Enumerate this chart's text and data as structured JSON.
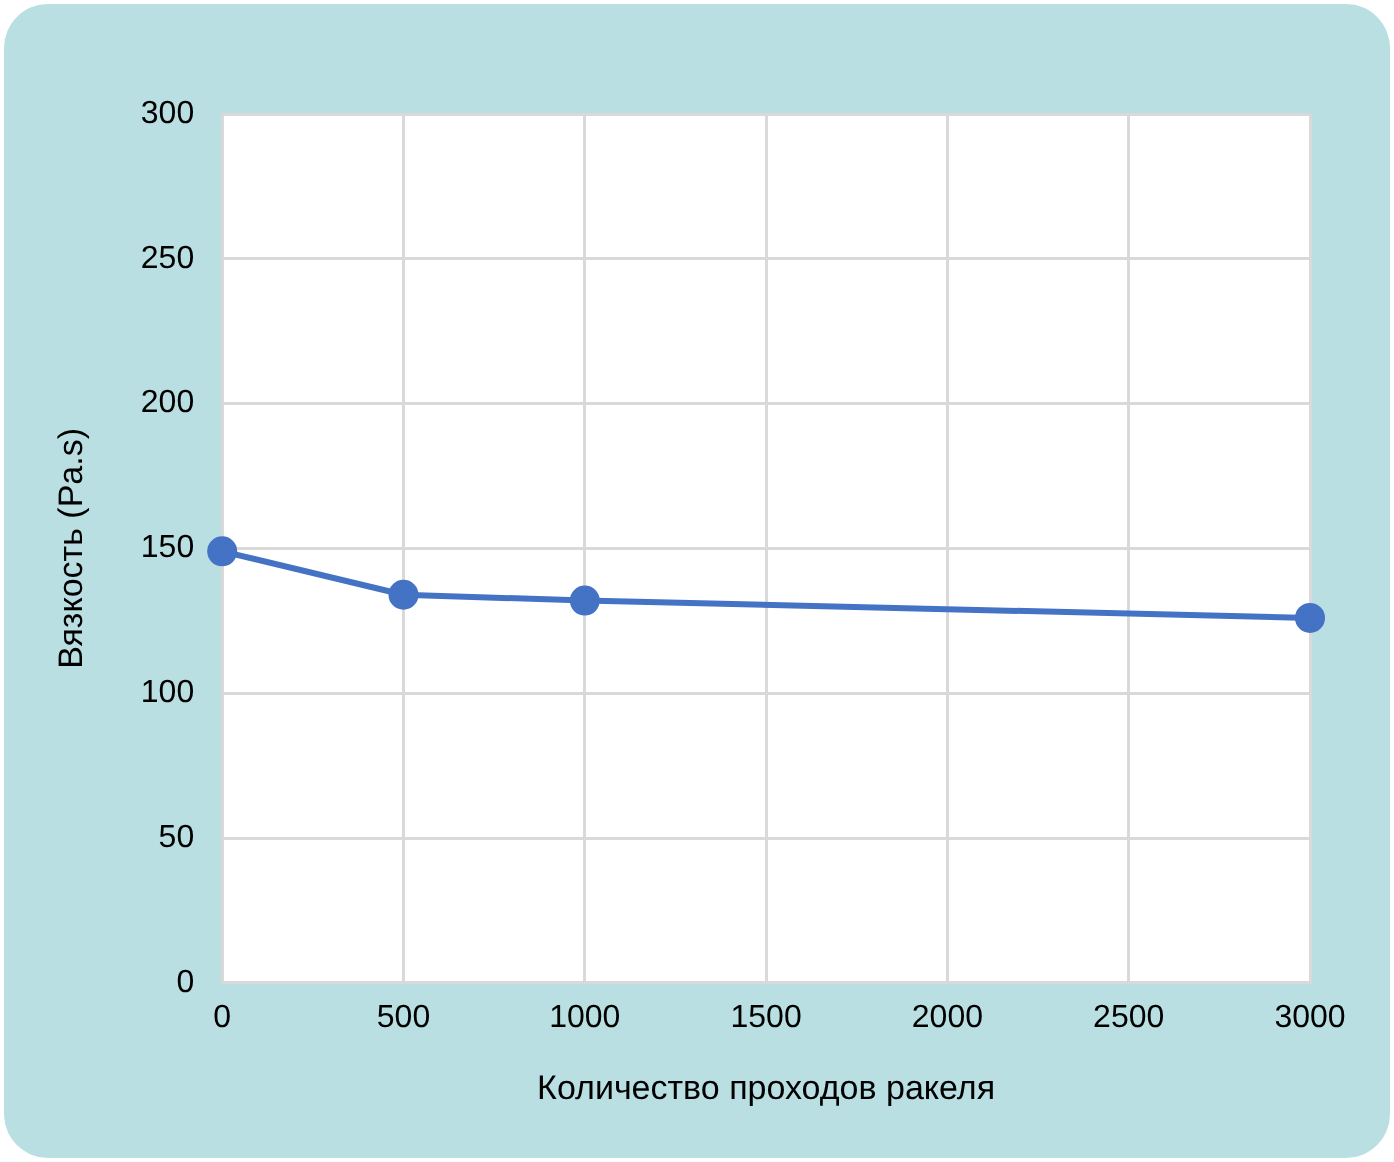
{
  "chart_data": {
    "type": "line",
    "xlabel": "Количество проходов ракеля",
    "ylabel": "Вязкость (Pa.s)",
    "x": [
      0,
      500,
      1000,
      3000
    ],
    "series": [
      {
        "color": "#4472c4",
        "values": [
          149,
          134,
          132,
          126
        ]
      }
    ],
    "xlim": [
      0,
      3000
    ],
    "xticks": [
      0,
      500,
      1000,
      1500,
      2000,
      2500,
      3000
    ],
    "ylim": [
      0,
      300
    ],
    "yticks": [
      0,
      50,
      100,
      150,
      200,
      250,
      300
    ],
    "grid": true,
    "legend": false,
    "marker": "circle",
    "line_style": "solid"
  }
}
